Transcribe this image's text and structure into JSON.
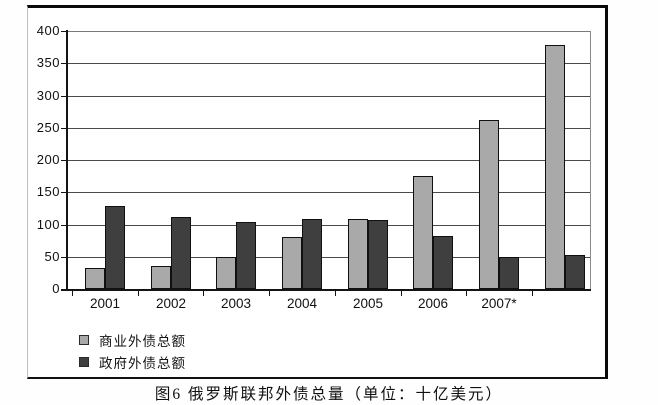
{
  "figure": {
    "caption": "图6 俄罗斯联邦外债总量（单位：十亿美元）"
  },
  "legend": {
    "items": [
      {
        "label": "商业外债总额",
        "color": "#a9a9a9",
        "marker": "light-gray-square"
      },
      {
        "label": "政府外债总额",
        "color": "#3f3f3f",
        "marker": "dark-gray-square"
      }
    ]
  },
  "chart_data": {
    "type": "bar",
    "title": "",
    "categories": [
      "2001",
      "2002",
      "2003",
      "2004",
      "2005",
      "2006",
      "2007*",
      ""
    ],
    "series": [
      {
        "name": "商业外债总额",
        "color": "#a9a9a9",
        "values": [
          33,
          36,
          50,
          80,
          109,
          175,
          262,
          379
        ]
      },
      {
        "name": "政府外债总额",
        "color": "#3f3f3f",
        "values": [
          129,
          112,
          104,
          108,
          107,
          82,
          49,
          52
        ]
      }
    ],
    "xlabel": "",
    "ylabel": "",
    "ylim": [
      0,
      400
    ],
    "yticks": [
      0,
      50,
      100,
      150,
      200,
      250,
      300,
      350,
      400
    ],
    "grid": true,
    "legend_position": "bottom-left",
    "unit_note": "单位：十亿美元"
  }
}
